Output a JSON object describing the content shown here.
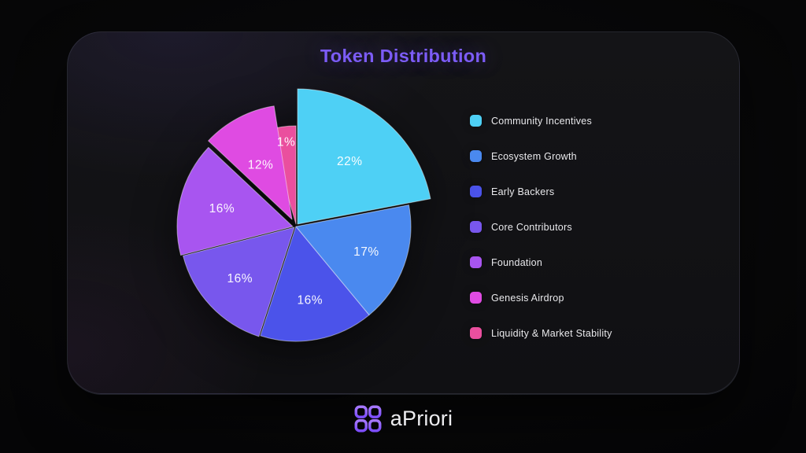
{
  "title": "Token Distribution",
  "footer": {
    "brand": "aPriori"
  },
  "colors": {
    "title": "#7c5cf7",
    "page_background": "#070708",
    "card_background": "#121215",
    "legend_text": "#e9e9ec",
    "brand_text": "#ededf0",
    "slice_label_text": "#ffffff",
    "logo_gradient_top": "#a678ff",
    "logo_gradient_bottom": "#7c4dff"
  },
  "chart_data": {
    "type": "pie",
    "title": "Token Distribution",
    "unit": "percent",
    "total": 100,
    "direction": "clockwise",
    "start_angle_deg": 0,
    "legend_position": "right",
    "segments": [
      {
        "label": "Community Incentives",
        "value": 22,
        "display": "22%",
        "color": "#4ed0f5",
        "exploded": true
      },
      {
        "label": "Ecosystem Growth",
        "value": 17,
        "display": "17%",
        "color": "#4a89ef",
        "exploded": false
      },
      {
        "label": "Early Backers",
        "value": 16,
        "display": "16%",
        "color": "#4b53ea",
        "exploded": false
      },
      {
        "label": "Core Contributors",
        "value": 16,
        "display": "16%",
        "color": "#7857ed",
        "exploded": false
      },
      {
        "label": "Foundation",
        "value": 16,
        "display": "16%",
        "color": "#a855f0",
        "exploded": false
      },
      {
        "label": "Genesis Airdrop",
        "value": 12,
        "display": "12%",
        "color": "#df4be2",
        "exploded": false
      },
      {
        "label": "Liquidity & Market Stability",
        "value": 1,
        "display": "1%",
        "color": "#ea4f9e",
        "exploded": false
      }
    ]
  }
}
